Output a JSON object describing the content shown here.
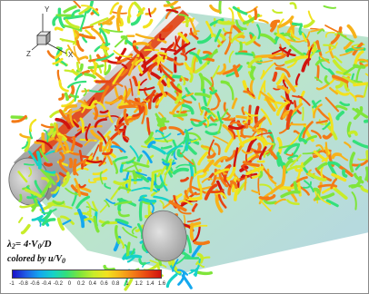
{
  "triad": {
    "y": "Y",
    "x": "X",
    "z": "Z"
  },
  "legend": {
    "lambda_expr": "4·V",
    "lambda_sub0": "0",
    "lambda_tail": "/D",
    "lambda_symbol": "λ",
    "lambda_symbol_sub": "2",
    "colored_prefix": "colored by u/V",
    "colored_sub": "0",
    "colorbar_ticks": [
      "-1",
      "-0.8",
      "-0.6",
      "-0.4",
      "-0.2",
      "0",
      "0.2",
      "0.4",
      "0.6",
      "0.8",
      "1",
      "1.2",
      "1.4",
      "1.6"
    ],
    "colorbar_stops": [
      "#1a10c8",
      "#1f5fe6",
      "#14a8ee",
      "#16d2c8",
      "#34e07a",
      "#7fe53a",
      "#c8ec2a",
      "#f2e21e",
      "#f7b21a",
      "#f37a16",
      "#e84412",
      "#d0140e"
    ]
  },
  "colors": {
    "cylinder_stripe": "#e04a1e",
    "cylinder_body": "#b8b8b8"
  }
}
